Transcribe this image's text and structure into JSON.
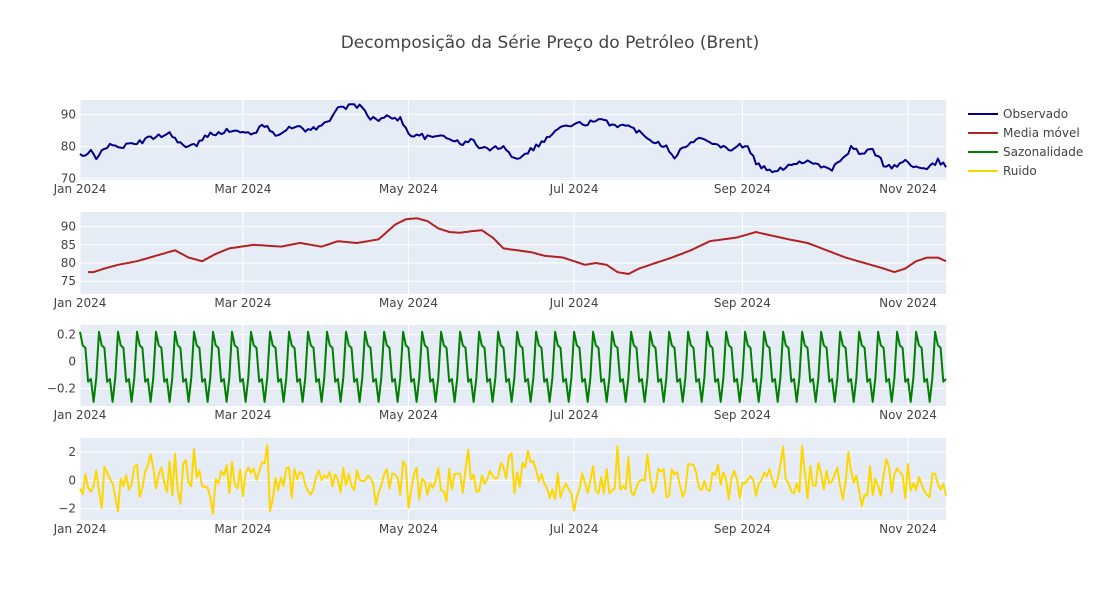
{
  "chart_data": {
    "type": "line",
    "title": "Decomposição da Série Preço do Petróleo (Brent)",
    "x_ticks": [
      "Jan 2024",
      "Mar 2024",
      "May 2024",
      "Jul 2024",
      "Sep 2024",
      "Nov 2024"
    ],
    "x_range": [
      "2024-01-01",
      "2024-11-15"
    ],
    "legend": {
      "placement": "right-top"
    },
    "grid": true,
    "panels": [
      {
        "series": {
          "name": "Observado",
          "color": "#00008b"
        },
        "y_range": [
          69.5,
          94.5
        ],
        "y_ticks": [
          {
            "value": 70,
            "label": "70"
          },
          {
            "value": 80,
            "label": "80"
          },
          {
            "value": 90,
            "label": "90"
          }
        ],
        "points": [
          [
            "2024-01-01",
            77.5
          ],
          [
            "2024-01-03",
            76.5
          ],
          [
            "2024-01-05",
            78.5
          ],
          [
            "2024-01-07",
            76.0
          ],
          [
            "2024-01-09",
            79.5
          ],
          [
            "2024-01-12",
            80.0
          ],
          [
            "2024-01-16",
            80.0
          ],
          [
            "2024-01-20",
            80.5
          ],
          [
            "2024-01-25",
            82.0
          ],
          [
            "2024-01-30",
            83.5
          ],
          [
            "2024-02-03",
            84.0
          ],
          [
            "2024-02-06",
            82.0
          ],
          [
            "2024-02-09",
            79.5
          ],
          [
            "2024-02-13",
            80.5
          ],
          [
            "2024-02-17",
            83.5
          ],
          [
            "2024-02-21",
            84.5
          ],
          [
            "2024-02-26",
            85.0
          ],
          [
            "2024-03-01",
            84.0
          ],
          [
            "2024-03-05",
            84.5
          ],
          [
            "2024-03-09",
            86.5
          ],
          [
            "2024-03-13",
            84.0
          ],
          [
            "2024-03-17",
            85.0
          ],
          [
            "2024-03-21",
            86.5
          ],
          [
            "2024-03-25",
            85.0
          ],
          [
            "2024-03-29",
            86.0
          ],
          [
            "2024-04-02",
            88.0
          ],
          [
            "2024-04-05",
            93.0
          ],
          [
            "2024-04-08",
            92.0
          ],
          [
            "2024-04-11",
            93.0
          ],
          [
            "2024-04-14",
            92.0
          ],
          [
            "2024-04-17",
            89.0
          ],
          [
            "2024-04-20",
            88.0
          ],
          [
            "2024-04-24",
            89.5
          ],
          [
            "2024-04-28",
            88.5
          ],
          [
            "2024-05-01",
            84.0
          ],
          [
            "2024-05-05",
            83.5
          ],
          [
            "2024-05-09",
            82.5
          ],
          [
            "2024-05-13",
            83.5
          ],
          [
            "2024-05-17",
            82.5
          ],
          [
            "2024-05-20",
            80.5
          ],
          [
            "2024-05-24",
            82.0
          ],
          [
            "2024-05-28",
            79.5
          ],
          [
            "2024-06-01",
            79.0
          ],
          [
            "2024-06-05",
            80.5
          ],
          [
            "2024-06-09",
            76.0
          ],
          [
            "2024-06-13",
            78.0
          ],
          [
            "2024-06-17",
            80.0
          ],
          [
            "2024-06-21",
            82.5
          ],
          [
            "2024-06-25",
            85.5
          ],
          [
            "2024-06-29",
            86.5
          ],
          [
            "2024-07-03",
            87.0
          ],
          [
            "2024-07-07",
            87.5
          ],
          [
            "2024-07-11",
            88.0
          ],
          [
            "2024-07-15",
            87.0
          ],
          [
            "2024-07-19",
            86.5
          ],
          [
            "2024-07-23",
            85.5
          ],
          [
            "2024-07-27",
            83.5
          ],
          [
            "2024-07-31",
            81.5
          ],
          [
            "2024-08-04",
            80.0
          ],
          [
            "2024-08-07",
            77.0
          ],
          [
            "2024-08-11",
            80.0
          ],
          [
            "2024-08-15",
            82.0
          ],
          [
            "2024-08-19",
            82.5
          ],
          [
            "2024-08-23",
            80.5
          ],
          [
            "2024-08-27",
            79.0
          ],
          [
            "2024-08-31",
            80.5
          ],
          [
            "2024-09-03",
            79.5
          ],
          [
            "2024-09-06",
            75.0
          ],
          [
            "2024-09-10",
            72.5
          ],
          [
            "2024-09-14",
            72.0
          ],
          [
            "2024-09-17",
            74.0
          ],
          [
            "2024-09-21",
            75.0
          ],
          [
            "2024-09-25",
            75.5
          ],
          [
            "2024-09-29",
            74.5
          ],
          [
            "2024-10-03",
            72.5
          ],
          [
            "2024-10-07",
            75.0
          ],
          [
            "2024-10-11",
            79.5
          ],
          [
            "2024-10-15",
            77.5
          ],
          [
            "2024-10-19",
            79.0
          ],
          [
            "2024-10-23",
            74.5
          ],
          [
            "2024-10-27",
            73.5
          ],
          [
            "2024-10-31",
            75.5
          ],
          [
            "2024-11-04",
            73.5
          ],
          [
            "2024-11-08",
            72.5
          ],
          [
            "2024-11-12",
            75.5
          ],
          [
            "2024-11-15",
            73.5
          ]
        ]
      },
      {
        "series": {
          "name": "Media móvel",
          "color": "#b22222"
        },
        "y_range": [
          71.5,
          94
        ],
        "y_ticks": [
          {
            "value": 75,
            "label": "75"
          },
          {
            "value": 80,
            "label": "80"
          },
          {
            "value": 85,
            "label": "85"
          },
          {
            "value": 90,
            "label": "90"
          }
        ],
        "points": [
          [
            "2024-01-04",
            77.5
          ],
          [
            "2024-01-06",
            77.5
          ],
          [
            "2024-01-10",
            78.5
          ],
          [
            "2024-01-15",
            79.5
          ],
          [
            "2024-01-22",
            80.5
          ],
          [
            "2024-01-29",
            82.0
          ],
          [
            "2024-02-05",
            83.5
          ],
          [
            "2024-02-10",
            81.5
          ],
          [
            "2024-02-15",
            80.5
          ],
          [
            "2024-02-20",
            82.5
          ],
          [
            "2024-02-25",
            84.0
          ],
          [
            "2024-03-05",
            85.0
          ],
          [
            "2024-03-15",
            84.5
          ],
          [
            "2024-03-22",
            85.5
          ],
          [
            "2024-03-30",
            84.5
          ],
          [
            "2024-04-05",
            86.0
          ],
          [
            "2024-04-12",
            85.5
          ],
          [
            "2024-04-20",
            86.5
          ],
          [
            "2024-04-26",
            90.5
          ],
          [
            "2024-04-30",
            92.0
          ],
          [
            "2024-05-04",
            92.3
          ],
          [
            "2024-05-08",
            91.5
          ],
          [
            "2024-05-12",
            89.5
          ],
          [
            "2024-05-16",
            88.5
          ],
          [
            "2024-05-20",
            88.3
          ],
          [
            "2024-05-24",
            88.7
          ],
          [
            "2024-05-28",
            89.0
          ],
          [
            "2024-06-01",
            87.0
          ],
          [
            "2024-06-05",
            84.0
          ],
          [
            "2024-06-10",
            83.5
          ],
          [
            "2024-06-15",
            83.0
          ],
          [
            "2024-06-20",
            82.0
          ],
          [
            "2024-06-27",
            81.5
          ],
          [
            "2024-07-01",
            80.5
          ],
          [
            "2024-07-05",
            79.5
          ],
          [
            "2024-07-09",
            80.0
          ],
          [
            "2024-07-13",
            79.5
          ],
          [
            "2024-07-17",
            77.5
          ],
          [
            "2024-07-21",
            77.0
          ],
          [
            "2024-07-25",
            78.5
          ],
          [
            "2024-07-31",
            80.0
          ],
          [
            "2024-08-06",
            81.5
          ],
          [
            "2024-08-13",
            83.5
          ],
          [
            "2024-08-20",
            86.0
          ],
          [
            "2024-08-30",
            87.0
          ],
          [
            "2024-09-06",
            88.5
          ],
          [
            "2024-09-12",
            87.5
          ],
          [
            "2024-09-18",
            86.5
          ],
          [
            "2024-09-25",
            85.5
          ],
          [
            "2024-10-02",
            83.5
          ],
          [
            "2024-10-09",
            81.5
          ],
          [
            "2024-10-16",
            80.0
          ],
          [
            "2024-10-23",
            78.5
          ],
          [
            "2024-10-27",
            77.5
          ],
          [
            "2024-10-31",
            78.5
          ],
          [
            "2024-11-04",
            80.5
          ],
          [
            "2024-11-08",
            81.5
          ],
          [
            "2024-11-12",
            81.5
          ],
          [
            "2024-11-15",
            80.5
          ]
        ]
      },
      {
        "series": {
          "name": "Sazonalidade",
          "color": "#008000"
        },
        "y_range": [
          -0.33,
          0.27
        ],
        "y_ticks": [
          {
            "value": -0.2,
            "label": "−0.2"
          },
          {
            "value": 0,
            "label": "0"
          },
          {
            "value": 0.2,
            "label": "0.2"
          }
        ],
        "period_days": 7,
        "weekly_pattern": [
          0.22,
          0.12,
          0.1,
          -0.15,
          -0.13,
          -0.3,
          -0.12
        ]
      },
      {
        "series": {
          "name": "Ruido",
          "color": "#ffd700"
        },
        "y_range": [
          -2.8,
          3.0
        ],
        "y_ticks": [
          {
            "value": -2,
            "label": "−2"
          },
          {
            "value": 0,
            "label": "0"
          },
          {
            "value": 2,
            "label": "2"
          }
        ],
        "residual_amplitude": 2.6
      }
    ]
  }
}
